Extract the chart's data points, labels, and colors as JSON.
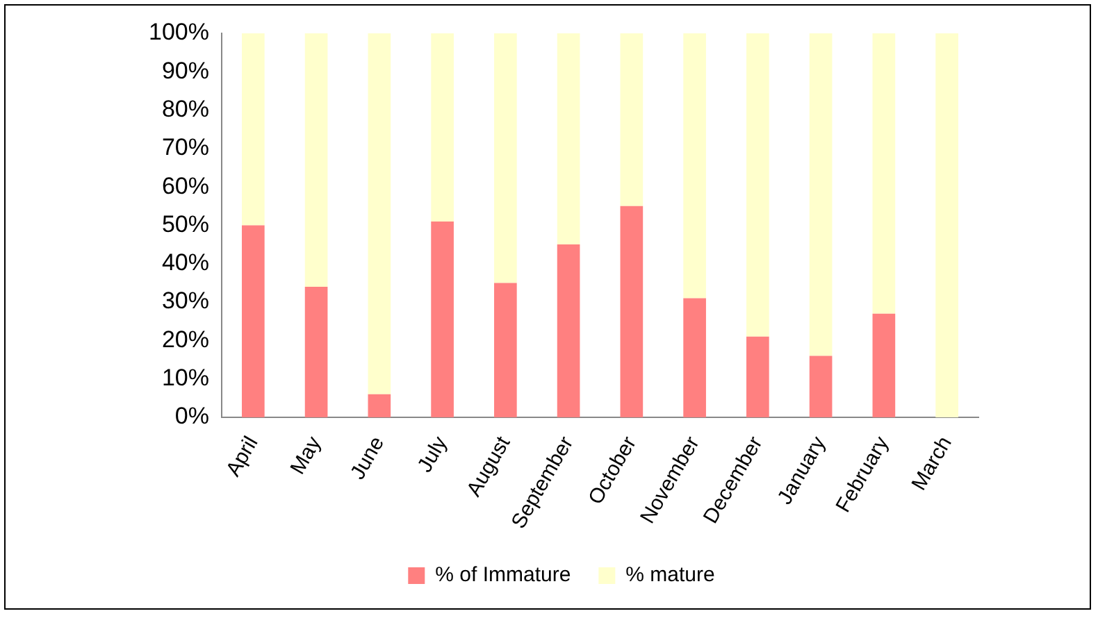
{
  "chart_data": {
    "type": "bar",
    "stacked": true,
    "categories": [
      "April",
      "May",
      "June",
      "July",
      "August",
      "September",
      "October",
      "November",
      "December",
      "January",
      "February",
      "March"
    ],
    "series": [
      {
        "name": "% of Immature",
        "color": "#ff8080",
        "values": [
          50,
          34,
          6,
          51,
          35,
          45,
          55,
          31,
          21,
          16,
          27,
          0
        ]
      },
      {
        "name": "% mature",
        "color": "#ffffcc",
        "values": [
          50,
          66,
          94,
          49,
          65,
          55,
          45,
          69,
          79,
          84,
          73,
          100
        ]
      }
    ],
    "ylim": [
      0,
      100
    ],
    "yticks": [
      {
        "value": 0,
        "label": "0%"
      },
      {
        "value": 10,
        "label": "10%"
      },
      {
        "value": 20,
        "label": "20%"
      },
      {
        "value": 30,
        "label": "30%"
      },
      {
        "value": 40,
        "label": "40%"
      },
      {
        "value": 50,
        "label": "50%"
      },
      {
        "value": 60,
        "label": "60%"
      },
      {
        "value": 70,
        "label": "70%"
      },
      {
        "value": 80,
        "label": "80%"
      },
      {
        "value": 90,
        "label": "90%"
      },
      {
        "value": 100,
        "label": "100%"
      }
    ],
    "grid": false,
    "legend": "bottom"
  }
}
